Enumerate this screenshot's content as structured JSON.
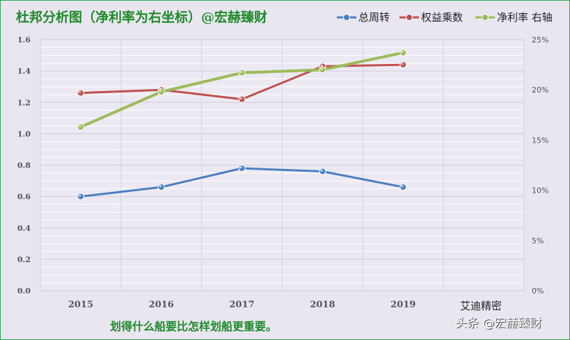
{
  "chart_data": {
    "type": "line",
    "title": "杜邦分析图（净利率为右坐标）@宏赫臻财",
    "categories": [
      "2015",
      "2016",
      "2017",
      "2018",
      "2019"
    ],
    "left_axis": {
      "ylim": [
        0,
        1.6
      ],
      "ticks": [
        "0.0",
        "0.2",
        "0.4",
        "0.6",
        "0.8",
        "1.0",
        "1.2",
        "1.4",
        "1.6"
      ]
    },
    "right_axis": {
      "ylim": [
        0,
        25
      ],
      "ticks": [
        "0%",
        "5%",
        "10%",
        "15%",
        "20%",
        "25%"
      ]
    },
    "series": [
      {
        "name": "总周转",
        "axis": "left",
        "color": "#4a7fc0",
        "values": [
          0.6,
          0.66,
          0.78,
          0.76,
          0.66
        ]
      },
      {
        "name": "权益乘数",
        "axis": "left",
        "color": "#c0504d",
        "values": [
          1.26,
          1.28,
          1.22,
          1.43,
          1.44
        ]
      },
      {
        "name": "净利率 右轴",
        "axis": "right",
        "color": "#9bbb59",
        "values": [
          16.3,
          19.8,
          21.7,
          22.0,
          23.7
        ]
      }
    ],
    "legend_position": "top-right",
    "grid": true,
    "annotations": {
      "bottom_right_label": "艾迪精密",
      "bottom_subtitle": "划得什么船要比怎样划船更重要。",
      "watermark": "头条 @宏赫臻财"
    }
  }
}
